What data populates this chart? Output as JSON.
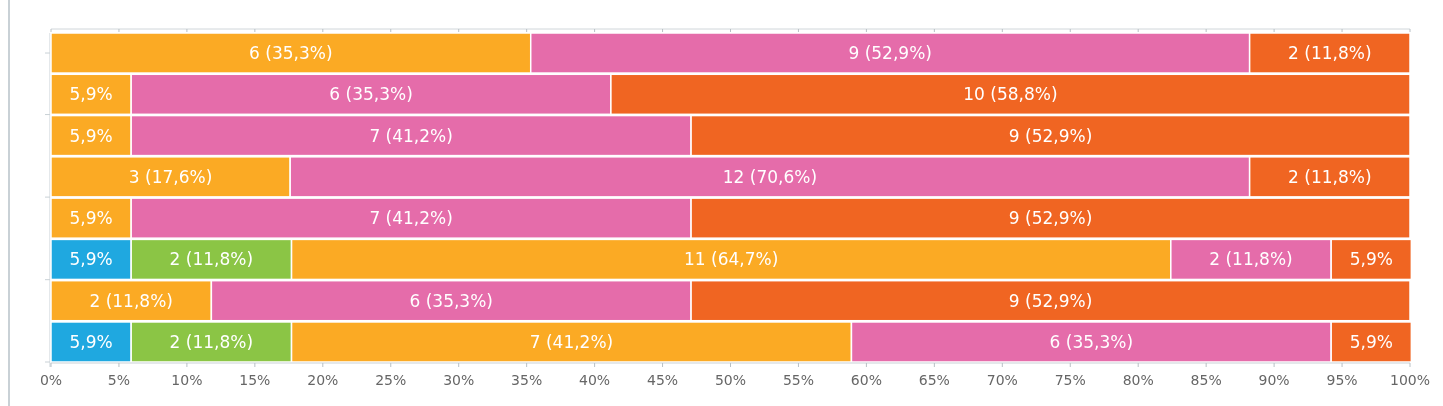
{
  "chart_data": {
    "type": "bar",
    "orientation": "horizontal",
    "stacked": true,
    "categories": [
      null,
      null,
      null,
      null,
      null,
      null,
      null,
      null
    ],
    "series": [
      {
        "color": "#1fa8e0",
        "values": [
          null,
          null,
          null,
          null,
          null,
          5.9,
          null,
          5.9
        ],
        "value_labels": [
          null,
          null,
          null,
          null,
          null,
          "5,9%",
          null,
          "5,9%"
        ]
      },
      {
        "color": "#8bc545",
        "values": [
          null,
          null,
          null,
          null,
          null,
          11.8,
          null,
          11.8
        ],
        "value_labels": [
          null,
          null,
          null,
          null,
          null,
          "2 (11,8%)",
          null,
          "2 (11,8%)"
        ]
      },
      {
        "color": "#fbaa24",
        "values": [
          35.3,
          5.9,
          5.9,
          17.6,
          5.9,
          64.7,
          11.8,
          41.2
        ],
        "value_labels": [
          "6 (35,3%)",
          "5,9%",
          "5,9%",
          "3 (17,6%)",
          "5,9%",
          "11 (64,7%)",
          "2 (11,8%)",
          "7 (41,2%)"
        ]
      },
      {
        "color": "#e56caa",
        "values": [
          52.9,
          35.3,
          41.2,
          70.6,
          41.2,
          11.8,
          35.3,
          35.3
        ],
        "value_labels": [
          "9 (52,9%)",
          "6 (35,3%)",
          "7 (41,2%)",
          "12 (70,6%)",
          "7 (41,2%)",
          "2 (11,8%)",
          "6 (35,3%)",
          "6 (35,3%)"
        ]
      },
      {
        "color": "#f06522",
        "values": [
          11.8,
          58.8,
          52.9,
          11.8,
          52.9,
          5.9,
          52.9,
          5.9
        ],
        "value_labels": [
          "2 (11,8%)",
          "10 (58,8%)",
          "9 (52,9%)",
          "2 (11,8%)",
          "9 (52,9%)",
          "5,9%",
          "9 (52,9%)",
          "5,9%"
        ]
      }
    ],
    "xlim": [
      0,
      100
    ],
    "xticks": [
      {
        "value": 0,
        "label": "0%"
      },
      {
        "value": 5,
        "label": "5%"
      },
      {
        "value": 10,
        "label": "10%"
      },
      {
        "value": 15,
        "label": "15%"
      },
      {
        "value": 20,
        "label": "20%"
      },
      {
        "value": 25,
        "label": "25%"
      },
      {
        "value": 30,
        "label": "30%"
      },
      {
        "value": 35,
        "label": "35%"
      },
      {
        "value": 40,
        "label": "40%"
      },
      {
        "value": 45,
        "label": "45%"
      },
      {
        "value": 50,
        "label": "50%"
      },
      {
        "value": 55,
        "label": "55%"
      },
      {
        "value": 60,
        "label": "60%"
      },
      {
        "value": 65,
        "label": "65%"
      },
      {
        "value": 70,
        "label": "70%"
      },
      {
        "value": 75,
        "label": "75%"
      },
      {
        "value": 80,
        "label": "80%"
      },
      {
        "value": 85,
        "label": "85%"
      },
      {
        "value": 90,
        "label": "90%"
      },
      {
        "value": 95,
        "label": "95%"
      },
      {
        "value": 100,
        "label": "100%"
      }
    ]
  }
}
